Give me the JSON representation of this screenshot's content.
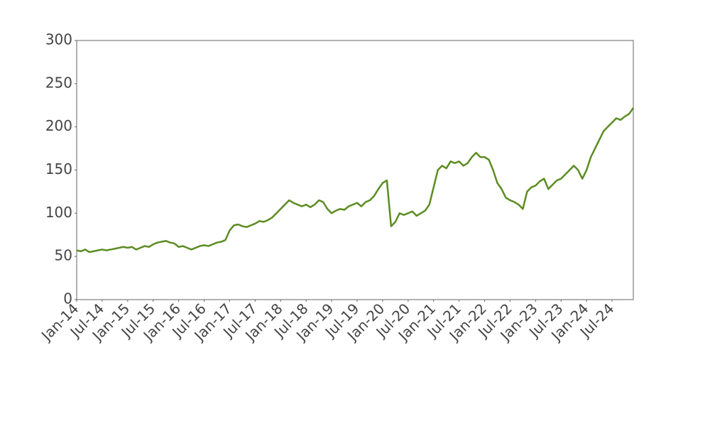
{
  "chart_data": {
    "type": "line",
    "x": [
      "2014-01",
      "2014-02",
      "2014-03",
      "2014-04",
      "2014-05",
      "2014-06",
      "2014-07",
      "2014-08",
      "2014-09",
      "2014-10",
      "2014-11",
      "2014-12",
      "2015-01",
      "2015-02",
      "2015-03",
      "2015-04",
      "2015-05",
      "2015-06",
      "2015-07",
      "2015-08",
      "2015-09",
      "2015-10",
      "2015-11",
      "2015-12",
      "2016-01",
      "2016-02",
      "2016-03",
      "2016-04",
      "2016-05",
      "2016-06",
      "2016-07",
      "2016-08",
      "2016-09",
      "2016-10",
      "2016-11",
      "2016-12",
      "2017-01",
      "2017-02",
      "2017-03",
      "2017-04",
      "2017-05",
      "2017-06",
      "2017-07",
      "2017-08",
      "2017-09",
      "2017-10",
      "2017-11",
      "2017-12",
      "2018-01",
      "2018-02",
      "2018-03",
      "2018-04",
      "2018-05",
      "2018-06",
      "2018-07",
      "2018-08",
      "2018-09",
      "2018-10",
      "2018-11",
      "2018-12",
      "2019-01",
      "2019-02",
      "2019-03",
      "2019-04",
      "2019-05",
      "2019-06",
      "2019-07",
      "2019-08",
      "2019-09",
      "2019-10",
      "2019-11",
      "2019-12",
      "2020-01",
      "2020-02",
      "2020-03",
      "2020-04",
      "2020-05",
      "2020-06",
      "2020-07",
      "2020-08",
      "2020-09",
      "2020-10",
      "2020-11",
      "2020-12",
      "2021-01",
      "2021-02",
      "2021-03",
      "2021-04",
      "2021-05",
      "2021-06",
      "2021-07",
      "2021-08",
      "2021-09",
      "2021-10",
      "2021-11",
      "2021-12",
      "2022-01",
      "2022-02",
      "2022-03",
      "2022-04",
      "2022-05",
      "2022-06",
      "2022-07",
      "2022-08",
      "2022-09",
      "2022-10",
      "2022-11",
      "2022-12",
      "2023-01",
      "2023-02",
      "2023-03",
      "2023-04",
      "2023-05",
      "2023-06",
      "2023-07",
      "2023-08",
      "2023-09",
      "2023-10",
      "2023-11",
      "2023-12",
      "2024-01",
      "2024-02",
      "2024-03",
      "2024-04",
      "2024-05",
      "2024-06",
      "2024-07",
      "2024-08",
      "2024-09",
      "2024-10",
      "2024-11",
      "2024-12"
    ],
    "values": [
      57,
      56,
      58,
      55,
      56,
      57,
      58,
      57,
      58,
      59,
      60,
      61,
      60,
      61,
      58,
      60,
      62,
      61,
      64,
      66,
      67,
      68,
      66,
      65,
      61,
      62,
      60,
      58,
      60,
      62,
      63,
      62,
      64,
      66,
      67,
      69,
      80,
      86,
      87,
      85,
      84,
      86,
      88,
      91,
      90,
      92,
      95,
      100,
      105,
      110,
      115,
      112,
      110,
      108,
      110,
      107,
      110,
      115,
      113,
      105,
      100,
      103,
      105,
      104,
      108,
      110,
      112,
      108,
      113,
      115,
      120,
      128,
      135,
      138,
      85,
      90,
      100,
      98,
      100,
      102,
      97,
      100,
      103,
      110,
      130,
      150,
      155,
      152,
      160,
      158,
      160,
      155,
      158,
      165,
      170,
      165,
      165,
      162,
      150,
      135,
      128,
      118,
      115,
      113,
      110,
      105,
      125,
      130,
      132,
      137,
      140,
      128,
      133,
      138,
      140,
      145,
      150,
      155,
      150,
      140,
      150,
      165,
      175,
      185,
      195,
      200,
      205,
      210,
      208,
      212,
      215,
      222
    ],
    "color": "#5b8c22",
    "xlim": [
      "2014-01",
      "2024-12"
    ],
    "xticks": [
      {
        "value": "2014-01",
        "label": "Jan-14"
      },
      {
        "value": "2014-07",
        "label": "Jul-14"
      },
      {
        "value": "2015-01",
        "label": "Jan-15"
      },
      {
        "value": "2015-07",
        "label": "Jul-15"
      },
      {
        "value": "2016-01",
        "label": "Jan-16"
      },
      {
        "value": "2016-07",
        "label": "Jul-16"
      },
      {
        "value": "2017-01",
        "label": "Jan-17"
      },
      {
        "value": "2017-07",
        "label": "Jul-17"
      },
      {
        "value": "2018-01",
        "label": "Jan-18"
      },
      {
        "value": "2018-07",
        "label": "Jul-18"
      },
      {
        "value": "2019-01",
        "label": "Jan-19"
      },
      {
        "value": "2019-07",
        "label": "Jul-19"
      },
      {
        "value": "2020-01",
        "label": "Jan-20"
      },
      {
        "value": "2020-07",
        "label": "Jul-20"
      },
      {
        "value": "2021-01",
        "label": "Jan-21"
      },
      {
        "value": "2021-07",
        "label": "Jul-21"
      },
      {
        "value": "2022-01",
        "label": "Jan-22"
      },
      {
        "value": "2022-07",
        "label": "Jul-22"
      },
      {
        "value": "2023-01",
        "label": "Jan-23"
      },
      {
        "value": "2023-07",
        "label": "Jul-23"
      },
      {
        "value": "2024-01",
        "label": "Jan-24"
      },
      {
        "value": "2024-07",
        "label": "Jul-24"
      }
    ],
    "ylim": [
      0,
      300
    ],
    "yticks": [
      0,
      50,
      100,
      150,
      200,
      250,
      300
    ],
    "grid": false
  }
}
